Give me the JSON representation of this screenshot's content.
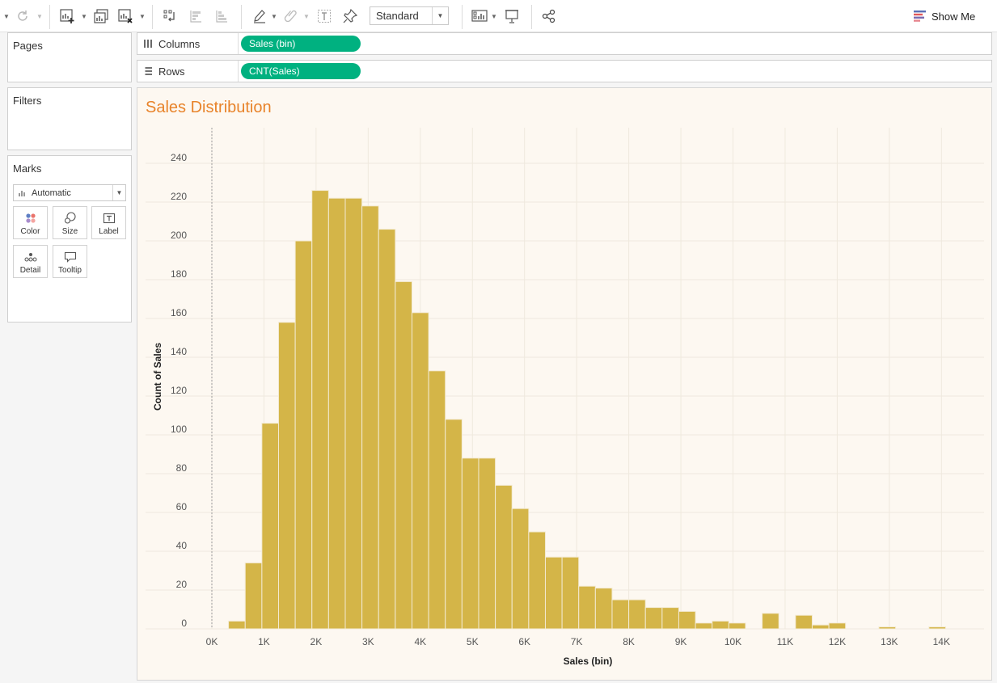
{
  "toolbar": {
    "fit_value": "Standard",
    "show_me_label": "Show Me"
  },
  "panes": {
    "pages_title": "Pages",
    "filters_title": "Filters",
    "marks_title": "Marks",
    "mark_type": "Automatic",
    "cards": [
      "Color",
      "Size",
      "Label",
      "Detail",
      "Tooltip"
    ]
  },
  "shelves": {
    "columns_label": "Columns",
    "columns_pill": "Sales (bin)",
    "rows_label": "Rows",
    "rows_pill": "CNT(Sales)"
  },
  "colors": {
    "bar": "#d4b548",
    "bar_stroke": "#f3ead2",
    "title": "#e8832a",
    "pill": "#00b180"
  },
  "chart_data": {
    "type": "bar",
    "title": "Sales Distribution",
    "xlabel": "Sales (bin)",
    "ylabel": "Count of Sales",
    "bin_width": 320,
    "x_ticks": [
      "0K",
      "1K",
      "2K",
      "3K",
      "4K",
      "5K",
      "6K",
      "7K",
      "8K",
      "9K",
      "10K",
      "11K",
      "12K",
      "13K",
      "14K"
    ],
    "x_tick_values": [
      0,
      1000,
      2000,
      3000,
      4000,
      5000,
      6000,
      7000,
      8000,
      9000,
      10000,
      11000,
      12000,
      13000,
      14000
    ],
    "y_ticks": [
      0,
      20,
      40,
      60,
      80,
      100,
      120,
      140,
      160,
      180,
      200,
      220,
      240
    ],
    "xlim": [
      0,
      14400
    ],
    "ylim": [
      0,
      250
    ],
    "grid": true,
    "bin_starts": [
      320,
      640,
      960,
      1280,
      1600,
      1920,
      2240,
      2560,
      2880,
      3200,
      3520,
      3840,
      4160,
      4480,
      4800,
      5120,
      5440,
      5760,
      6080,
      6400,
      6720,
      7040,
      7360,
      7680,
      8000,
      8320,
      8640,
      8960,
      9280,
      9600,
      9920,
      10240,
      10560,
      10880,
      11200,
      11520,
      11840,
      12160,
      12480,
      12800,
      13120,
      13440,
      13760
    ],
    "values": [
      4,
      34,
      106,
      158,
      200,
      226,
      222,
      222,
      218,
      206,
      179,
      163,
      133,
      108,
      88,
      88,
      74,
      62,
      50,
      37,
      37,
      22,
      21,
      15,
      15,
      11,
      11,
      9,
      3,
      4,
      3,
      0,
      8,
      0,
      7,
      2,
      3,
      0,
      0,
      1,
      0,
      0,
      1
    ]
  }
}
